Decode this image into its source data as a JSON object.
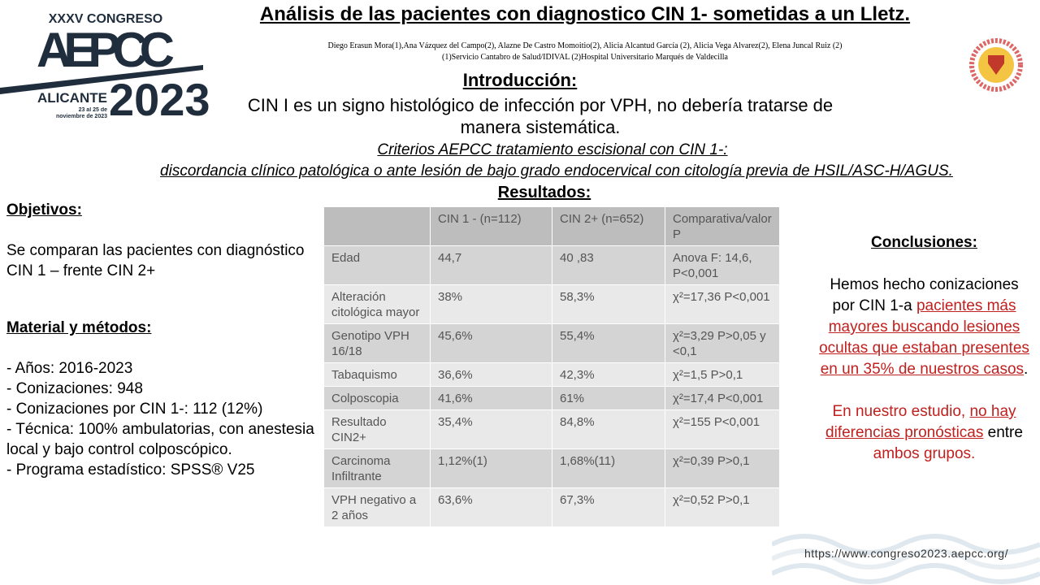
{
  "header": {
    "logo": {
      "congress": "XXXV CONGRESO",
      "name": "AEPCC",
      "city": "ALICANTE",
      "year": "2023",
      "dates": "23 al 25 de noviembre de 2023"
    },
    "title": "Análisis de las pacientes con diagnostico CIN 1-  sometidas a un Lletz.",
    "authors": "Diego Erasun Mora(1),Ana Vázquez del Campo(2), Alazne De Castro Momoitio(2), Alicia Alcantud García (2), Alicia Vega Alvarez(2), Elena Juncal Ruiz (2)",
    "affiliations": "(1)Servicio Cantabro de Salud/IDIVAL        (2)Hospital Universitario Marqués de Valdecilla"
  },
  "intro": {
    "heading": "Introducción:",
    "text": "CIN I es un signo histológico de infección por VPH, no debería tratarse de manera sistemática.",
    "criteria_heading": "Criterios AEPCC tratamiento escisional con CIN 1-:",
    "criteria_text": "discordancia clínico patológica o ante lesión de bajo grado endocervical con citología previa de HSIL/ASC-H/AGUS."
  },
  "results": {
    "heading": "Resultados:"
  },
  "objectives": {
    "heading": "Objetivos:",
    "text": "Se comparan las pacientes con diagnóstico CIN 1 – frente CIN 2+"
  },
  "methods": {
    "heading": "Material y métodos:",
    "items": [
      "- Años: 2016-2023",
      "- Conizaciones: 948",
      "- Conizaciones por CIN 1-: 112 (12%)",
      "- Técnica: 100% ambulatorias, con anestesia local y bajo control colposcópico.",
      "- Programa estadístico: SPSS® V25"
    ]
  },
  "table": {
    "header": [
      "CIN 1 - (n=112)",
      "CIN 2+ (n=652)",
      "Comparativa/valor P"
    ],
    "rows": [
      [
        "Edad",
        "44,7",
        "40 ,83",
        "Anova F: 14,6, P<0,001"
      ],
      [
        "Alteración citológica mayor",
        "38%",
        "58,3%",
        "χ²=17,36 P<0,001"
      ],
      [
        "Genotipo VPH 16/18",
        "45,6%",
        "55,4%",
        "χ²=3,29 P>0,05 y <0,1"
      ],
      [
        "Tabaquismo",
        "36,6%",
        "42,3%",
        "χ²=1,5 P>0,1"
      ],
      [
        "Colposcopia",
        "41,6%",
        "61%",
        "χ²=17,4 P<0,001"
      ],
      [
        "Resultado CIN2+",
        "35,4%",
        "84,8%",
        "χ²=155 P<0,001"
      ],
      [
        "Carcinoma Infiltrante",
        "1,12%(1)",
        "1,68%(11)",
        "χ²=0,39 P>0,1"
      ],
      [
        "VPH  negativo a 2 años",
        "63,6%",
        "67,3%",
        "χ²=0,52 P>0,1"
      ]
    ]
  },
  "conclusions": {
    "heading": "Conclusiones:",
    "paragraphs": [
      [
        {
          "text": "Hemos hecho conizaciones por CIN 1-a ",
          "style": "plain"
        },
        {
          "text": "pacientes más mayores buscando lesiones ocultas que  estaban presentes en un 35% de nuestros casos",
          "style": "red-underline"
        },
        {
          "text": ".",
          "style": "plain"
        }
      ],
      [
        {
          "text": "En nuestro estudio, ",
          "style": "red"
        },
        {
          "text": "no hay diferencias pronósticas",
          "style": "red-underline"
        },
        {
          "text": " entre",
          "style": "plain"
        },
        {
          "text": " ambos grupos.",
          "style": "red"
        }
      ]
    ]
  },
  "footer": {
    "url": "https://www.congreso2023.aepcc.org/"
  }
}
